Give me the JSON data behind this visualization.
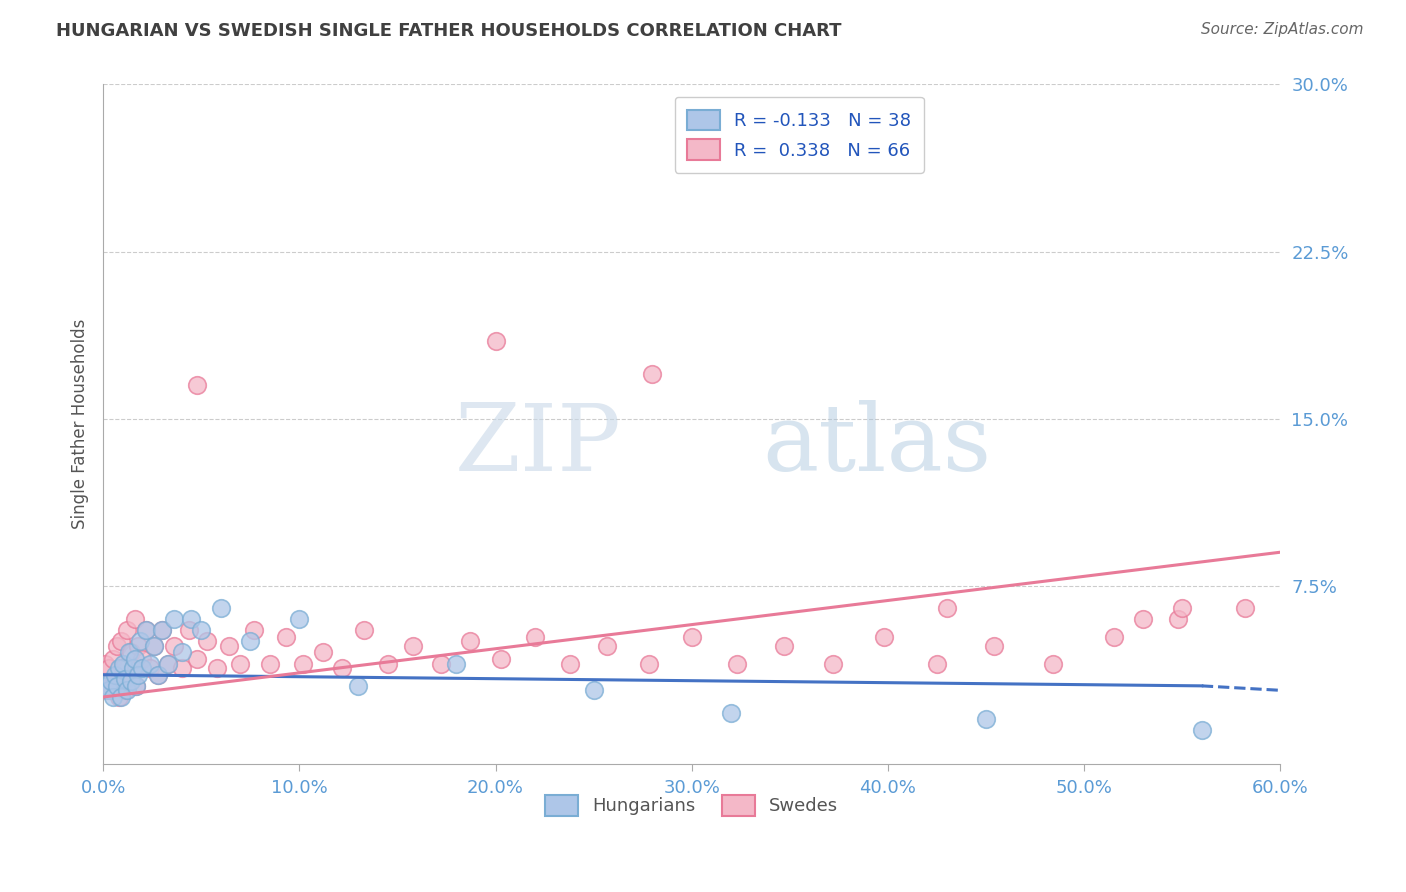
{
  "title": "HUNGARIAN VS SWEDISH SINGLE FATHER HOUSEHOLDS CORRELATION CHART",
  "source": "Source: ZipAtlas.com",
  "ylabel": "Single Father Households",
  "watermark_zip": "ZIP",
  "watermark_atlas": "atlas",
  "xlim": [
    0.0,
    0.6
  ],
  "ylim": [
    -0.005,
    0.3
  ],
  "xticks": [
    0.0,
    0.1,
    0.2,
    0.3,
    0.4,
    0.5,
    0.6
  ],
  "yticks_right": [
    0.075,
    0.15,
    0.225,
    0.3
  ],
  "ytick_labels_right": [
    "7.5%",
    "15.0%",
    "22.5%",
    "30.0%"
  ],
  "xtick_labels": [
    "0.0%",
    "10.0%",
    "20.0%",
    "30.0%",
    "40.0%",
    "50.0%",
    "60.0%"
  ],
  "blue_line_color": "#4472C4",
  "pink_line_color": "#E87A98",
  "blue_scatter_face": "#AEC6E8",
  "blue_scatter_edge": "#7AADD4",
  "pink_scatter_face": "#F4B8C8",
  "pink_scatter_edge": "#E87A98",
  "blue_R": -0.133,
  "blue_N": 38,
  "pink_R": 0.338,
  "pink_N": 66,
  "title_color": "#404040",
  "axis_tick_color": "#5B9BD5",
  "grid_color": "#CCCCCC",
  "legend_label_blue": "Hungarians",
  "legend_label_pink": "Swedes",
  "blue_x": [
    0.002,
    0.003,
    0.004,
    0.005,
    0.006,
    0.007,
    0.008,
    0.009,
    0.01,
    0.011,
    0.012,
    0.013,
    0.014,
    0.015,
    0.016,
    0.017,
    0.018,
    0.019,
    0.02,
    0.022,
    0.024,
    0.026,
    0.028,
    0.03,
    0.033,
    0.036,
    0.04,
    0.045,
    0.05,
    0.06,
    0.075,
    0.1,
    0.13,
    0.18,
    0.25,
    0.32,
    0.45,
    0.56
  ],
  "blue_y": [
    0.03,
    0.028,
    0.032,
    0.025,
    0.035,
    0.03,
    0.038,
    0.025,
    0.04,
    0.033,
    0.028,
    0.045,
    0.032,
    0.038,
    0.042,
    0.03,
    0.035,
    0.05,
    0.038,
    0.055,
    0.04,
    0.048,
    0.035,
    0.055,
    0.04,
    0.06,
    0.045,
    0.06,
    0.055,
    0.065,
    0.05,
    0.06,
    0.03,
    0.04,
    0.028,
    0.018,
    0.015,
    0.01
  ],
  "pink_x": [
    0.001,
    0.002,
    0.003,
    0.004,
    0.005,
    0.006,
    0.007,
    0.008,
    0.009,
    0.01,
    0.011,
    0.012,
    0.013,
    0.014,
    0.015,
    0.016,
    0.017,
    0.018,
    0.02,
    0.022,
    0.024,
    0.026,
    0.028,
    0.03,
    0.033,
    0.036,
    0.04,
    0.044,
    0.048,
    0.053,
    0.058,
    0.064,
    0.07,
    0.077,
    0.085,
    0.093,
    0.102,
    0.112,
    0.122,
    0.133,
    0.145,
    0.158,
    0.172,
    0.187,
    0.203,
    0.22,
    0.238,
    0.257,
    0.278,
    0.3,
    0.323,
    0.347,
    0.372,
    0.398,
    0.425,
    0.454,
    0.484,
    0.515,
    0.548,
    0.582,
    0.048,
    0.2,
    0.28,
    0.43,
    0.53,
    0.55
  ],
  "pink_y": [
    0.04,
    0.028,
    0.038,
    0.03,
    0.042,
    0.032,
    0.048,
    0.025,
    0.05,
    0.038,
    0.028,
    0.055,
    0.032,
    0.045,
    0.038,
    0.06,
    0.03,
    0.048,
    0.042,
    0.055,
    0.038,
    0.048,
    0.035,
    0.055,
    0.04,
    0.048,
    0.038,
    0.055,
    0.042,
    0.05,
    0.038,
    0.048,
    0.04,
    0.055,
    0.04,
    0.052,
    0.04,
    0.045,
    0.038,
    0.055,
    0.04,
    0.048,
    0.04,
    0.05,
    0.042,
    0.052,
    0.04,
    0.048,
    0.04,
    0.052,
    0.04,
    0.048,
    0.04,
    0.052,
    0.04,
    0.048,
    0.04,
    0.052,
    0.06,
    0.065,
    0.165,
    0.185,
    0.17,
    0.065,
    0.06,
    0.065
  ]
}
